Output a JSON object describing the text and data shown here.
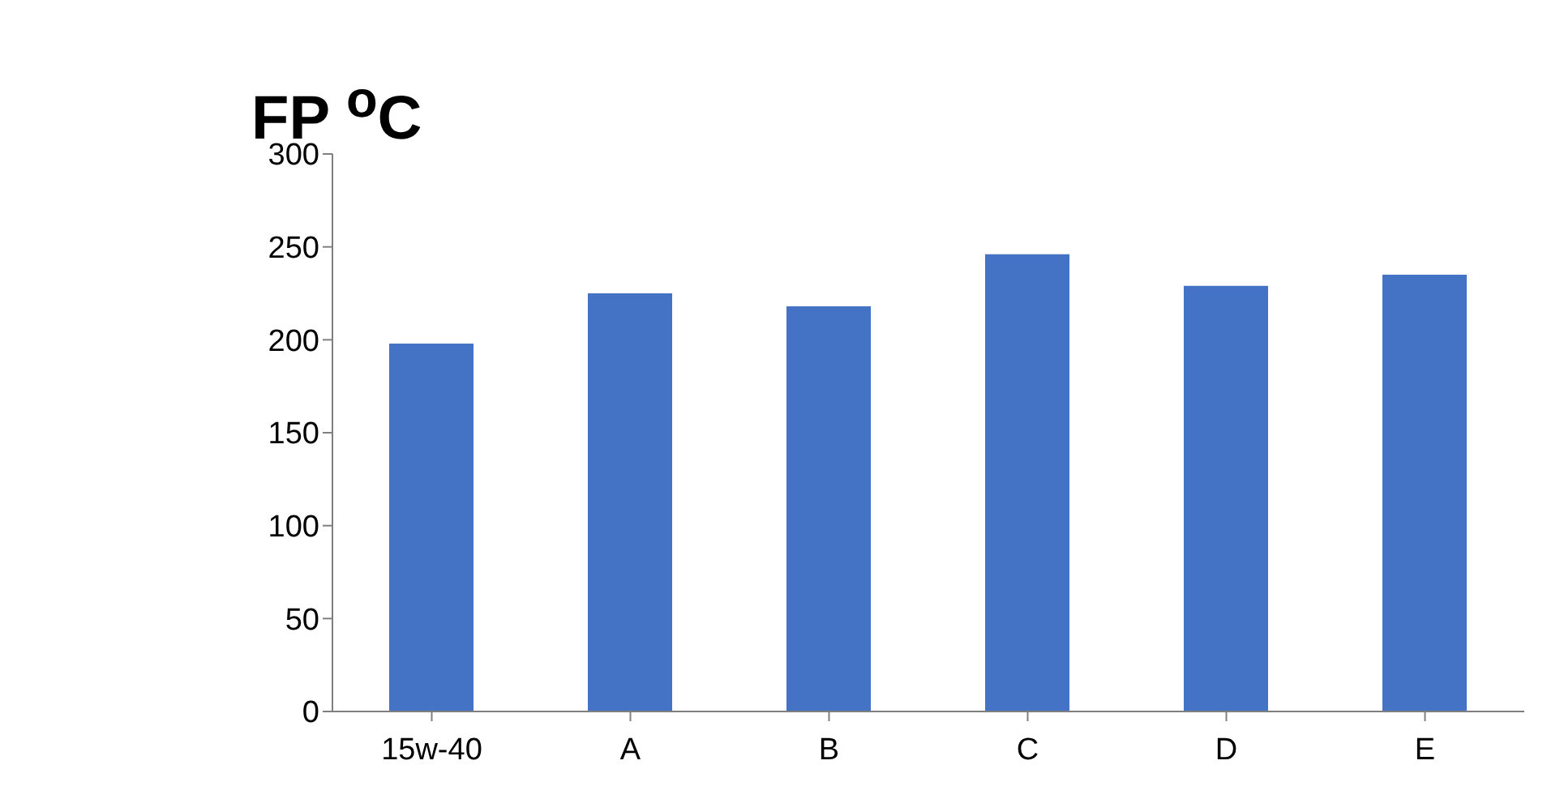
{
  "chart_data": {
    "type": "bar",
    "title": "FP $^{o}$C",
    "categories": [
      "15w-40",
      "A",
      "B",
      "C",
      "D",
      "E"
    ],
    "values": [
      198,
      225,
      218,
      246,
      229,
      235
    ],
    "color": "#4472c4",
    "ylim": [
      0,
      300
    ],
    "yticks": [
      0,
      50,
      100,
      150,
      200,
      250,
      300
    ],
    "grid": false
  }
}
